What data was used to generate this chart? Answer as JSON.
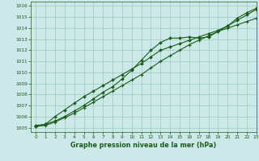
{
  "title": "Graphe pression niveau de la mer (hPa)",
  "background_color": "#cce8e8",
  "grid_color": "#99ccbb",
  "line_color": "#1a5c1a",
  "marker_color": "#1a5c1a",
  "xlim": [
    -0.5,
    23
  ],
  "ylim": [
    1004.6,
    1016.4
  ],
  "yticks": [
    1005,
    1006,
    1007,
    1008,
    1009,
    1010,
    1011,
    1012,
    1013,
    1014,
    1015,
    1016
  ],
  "xticks": [
    0,
    1,
    2,
    3,
    4,
    5,
    6,
    7,
    8,
    9,
    10,
    11,
    12,
    13,
    14,
    15,
    16,
    17,
    18,
    19,
    20,
    21,
    22,
    23
  ],
  "series1_x": [
    0,
    1,
    2,
    3,
    4,
    5,
    6,
    7,
    8,
    9,
    10,
    11,
    12,
    13,
    14,
    15,
    16,
    17,
    18,
    19,
    20,
    21,
    22,
    23
  ],
  "series1_y": [
    1005.2,
    1005.3,
    1005.6,
    1006.0,
    1006.5,
    1007.0,
    1007.6,
    1008.2,
    1008.7,
    1009.4,
    1010.2,
    1011.1,
    1012.0,
    1012.7,
    1013.1,
    1013.1,
    1013.2,
    1013.1,
    1013.2,
    1013.7,
    1014.2,
    1014.9,
    1015.4,
    1015.8
  ],
  "series2_x": [
    0,
    1,
    2,
    3,
    4,
    5,
    6,
    7,
    8,
    9,
    10,
    11,
    12,
    13,
    14,
    15,
    16,
    17,
    18,
    19,
    20,
    21,
    22,
    23
  ],
  "series2_y": [
    1005.1,
    1005.2,
    1005.5,
    1005.9,
    1006.3,
    1006.8,
    1007.3,
    1007.8,
    1008.3,
    1008.8,
    1009.3,
    1009.8,
    1010.4,
    1011.0,
    1011.5,
    1012.0,
    1012.5,
    1012.9,
    1013.3,
    1013.7,
    1014.0,
    1014.3,
    1014.6,
    1014.9
  ],
  "series3_x": [
    0,
    1,
    2,
    3,
    4,
    5,
    6,
    7,
    8,
    9,
    10,
    11,
    12,
    13,
    14,
    15,
    16,
    17,
    18,
    19,
    20,
    21,
    22,
    23
  ],
  "series3_y": [
    1005.1,
    1005.3,
    1006.0,
    1006.6,
    1007.2,
    1007.8,
    1008.3,
    1008.8,
    1009.3,
    1009.8,
    1010.3,
    1010.8,
    1011.4,
    1012.0,
    1012.3,
    1012.6,
    1012.9,
    1013.2,
    1013.5,
    1013.8,
    1014.2,
    1014.7,
    1015.2,
    1015.7
  ]
}
